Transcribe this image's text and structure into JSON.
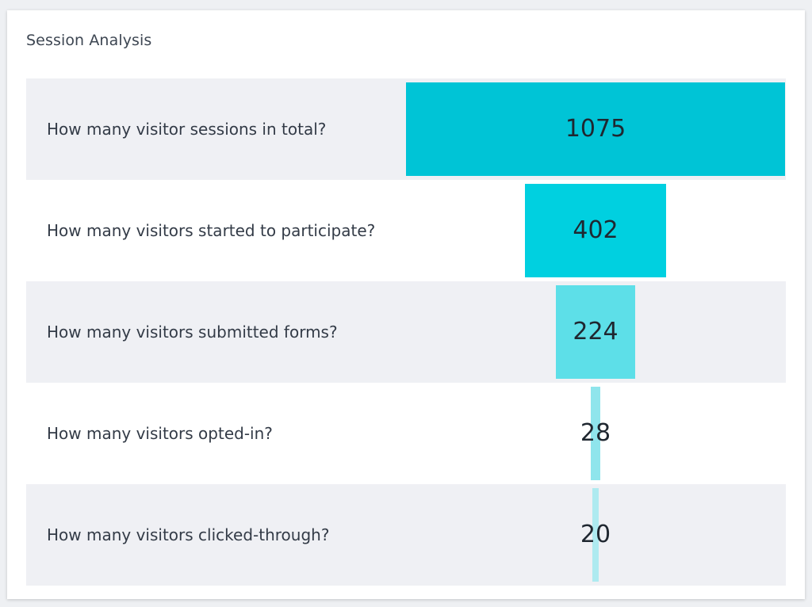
{
  "card": {
    "title": "Session Analysis"
  },
  "chart_data": {
    "type": "bar",
    "categories": [
      "How many visitor sessions in total?",
      "How many visitors started to participate?",
      "How many visitors submitted forms?",
      "How many visitors opted-in?",
      "How many visitors clicked-through?"
    ],
    "values": [
      1075,
      402,
      224,
      28,
      20
    ],
    "colors": [
      "#00c4d6",
      "#00d0e0",
      "#5ddfe8",
      "#8fe5ec",
      "#aeeaf0"
    ],
    "orientation": "funnel",
    "grid": false,
    "legend": "none"
  }
}
